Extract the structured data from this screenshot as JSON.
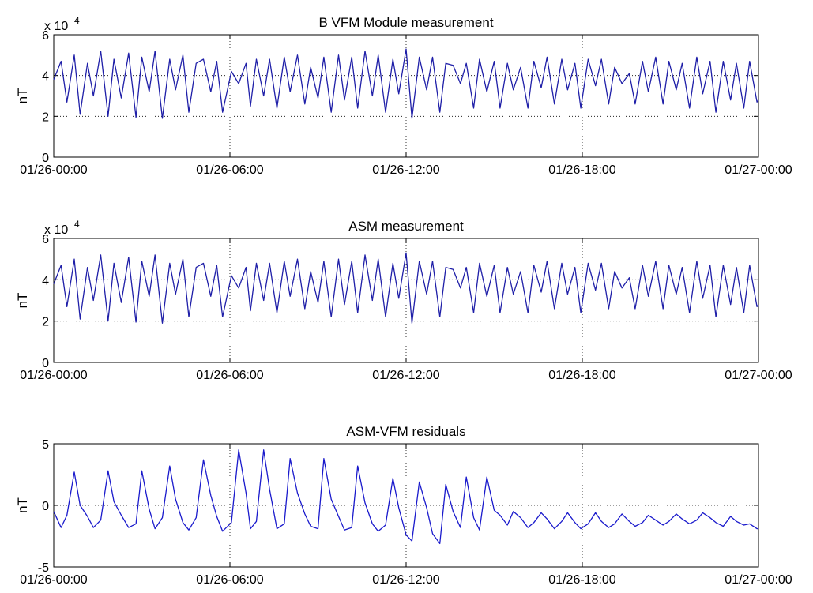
{
  "chart_data": [
    {
      "type": "line",
      "title": "B VFM Module measurement",
      "xlabel": "",
      "ylabel": "nT",
      "y_multiplier": "x 10",
      "y_multiplier_exponent": "4",
      "ylim": [
        0,
        6
      ],
      "yticks": [
        "0",
        "2",
        "4",
        "6"
      ],
      "xlim": [
        "01/26-00:00",
        "01/27-00:00"
      ],
      "xticks": [
        "01/26-00:00",
        "01/26-06:00",
        "01/26-12:00",
        "01/26-18:00",
        "01/27-00:00"
      ],
      "grid": true,
      "color": "#1f1fa8",
      "series": [
        {
          "x_hours": [
            0.0,
            0.25,
            0.45,
            0.7,
            0.9,
            1.15,
            1.35,
            1.6,
            1.85,
            2.05,
            2.3,
            2.55,
            2.8,
            3.0,
            3.25,
            3.45,
            3.7,
            3.95,
            4.15,
            4.4,
            4.6,
            4.85,
            5.1,
            5.35,
            5.55,
            5.75,
            6.05,
            6.3,
            6.55,
            6.7,
            6.9,
            7.15,
            7.35,
            7.6,
            7.85,
            8.05,
            8.3,
            8.55,
            8.75,
            9.0,
            9.2,
            9.45,
            9.7,
            9.9,
            10.15,
            10.35,
            10.6,
            10.85,
            11.05,
            11.3,
            11.55,
            11.75,
            12.0,
            12.2,
            12.45,
            12.7,
            12.9,
            13.15,
            13.35,
            13.6,
            13.85,
            14.05,
            14.3,
            14.5,
            14.75,
            15.0,
            15.2,
            15.45,
            15.65,
            15.9,
            16.15,
            16.35,
            16.6,
            16.8,
            17.05,
            17.3,
            17.5,
            17.75,
            17.95,
            18.2,
            18.45,
            18.65,
            18.9,
            19.1,
            19.35,
            19.6,
            19.8,
            20.05,
            20.25,
            20.5,
            20.75,
            20.95,
            21.2,
            21.4,
            21.65,
            21.9,
            22.1,
            22.35,
            22.55,
            22.8,
            23.05,
            23.25,
            23.5,
            23.7,
            23.95,
            24.0
          ],
          "values": [
            3.8,
            4.7,
            2.7,
            5.0,
            2.1,
            4.6,
            3.0,
            5.2,
            2.0,
            4.8,
            2.9,
            5.1,
            1.95,
            4.9,
            3.2,
            5.2,
            1.9,
            4.8,
            3.3,
            5.0,
            2.2,
            4.6,
            4.8,
            3.2,
            4.7,
            2.2,
            4.2,
            3.6,
            4.6,
            2.5,
            4.8,
            3.0,
            4.8,
            2.4,
            4.9,
            3.2,
            5.0,
            2.6,
            4.4,
            2.9,
            4.9,
            2.2,
            5.0,
            2.8,
            4.9,
            2.4,
            5.2,
            3.0,
            5.0,
            2.2,
            4.8,
            3.1,
            5.3,
            1.9,
            4.9,
            3.3,
            4.9,
            2.2,
            4.6,
            4.5,
            3.6,
            4.6,
            2.4,
            4.8,
            3.2,
            4.7,
            2.4,
            4.6,
            3.3,
            4.4,
            2.4,
            4.7,
            3.4,
            4.9,
            2.6,
            4.8,
            3.3,
            4.6,
            2.4,
            4.8,
            3.5,
            4.8,
            2.6,
            4.4,
            3.6,
            4.1,
            2.6,
            4.7,
            3.2,
            4.9,
            2.6,
            4.7,
            3.3,
            4.6,
            2.4,
            4.9,
            3.1,
            4.7,
            2.2,
            4.7,
            2.8,
            4.6,
            2.4,
            4.7,
            2.7,
            2.8
          ]
        }
      ]
    },
    {
      "type": "line",
      "title": "ASM measurement",
      "xlabel": "",
      "ylabel": "nT",
      "y_multiplier": "x 10",
      "y_multiplier_exponent": "4",
      "ylim": [
        0,
        6
      ],
      "yticks": [
        "0",
        "2",
        "4",
        "6"
      ],
      "xlim": [
        "01/26-00:00",
        "01/27-00:00"
      ],
      "xticks": [
        "01/26-00:00",
        "01/26-06:00",
        "01/26-12:00",
        "01/26-18:00",
        "01/27-00:00"
      ],
      "grid": true,
      "color": "#1f1fa8",
      "series": [
        {
          "x_hours": [
            0.0,
            0.25,
            0.45,
            0.7,
            0.9,
            1.15,
            1.35,
            1.6,
            1.85,
            2.05,
            2.3,
            2.55,
            2.8,
            3.0,
            3.25,
            3.45,
            3.7,
            3.95,
            4.15,
            4.4,
            4.6,
            4.85,
            5.1,
            5.35,
            5.55,
            5.75,
            6.05,
            6.3,
            6.55,
            6.7,
            6.9,
            7.15,
            7.35,
            7.6,
            7.85,
            8.05,
            8.3,
            8.55,
            8.75,
            9.0,
            9.2,
            9.45,
            9.7,
            9.9,
            10.15,
            10.35,
            10.6,
            10.85,
            11.05,
            11.3,
            11.55,
            11.75,
            12.0,
            12.2,
            12.45,
            12.7,
            12.9,
            13.15,
            13.35,
            13.6,
            13.85,
            14.05,
            14.3,
            14.5,
            14.75,
            15.0,
            15.2,
            15.45,
            15.65,
            15.9,
            16.15,
            16.35,
            16.6,
            16.8,
            17.05,
            17.3,
            17.5,
            17.75,
            17.95,
            18.2,
            18.45,
            18.65,
            18.9,
            19.1,
            19.35,
            19.6,
            19.8,
            20.05,
            20.25,
            20.5,
            20.75,
            20.95,
            21.2,
            21.4,
            21.65,
            21.9,
            22.1,
            22.35,
            22.55,
            22.8,
            23.05,
            23.25,
            23.5,
            23.7,
            23.95,
            24.0
          ],
          "values": [
            3.8,
            4.7,
            2.7,
            5.0,
            2.1,
            4.6,
            3.0,
            5.2,
            2.0,
            4.8,
            2.9,
            5.1,
            1.95,
            4.9,
            3.2,
            5.2,
            1.9,
            4.8,
            3.3,
            5.0,
            2.2,
            4.6,
            4.8,
            3.2,
            4.7,
            2.2,
            4.2,
            3.6,
            4.6,
            2.5,
            4.8,
            3.0,
            4.8,
            2.4,
            4.9,
            3.2,
            5.0,
            2.6,
            4.4,
            2.9,
            4.9,
            2.2,
            5.0,
            2.8,
            4.9,
            2.4,
            5.2,
            3.0,
            5.0,
            2.2,
            4.8,
            3.1,
            5.3,
            1.9,
            4.9,
            3.3,
            4.9,
            2.2,
            4.6,
            4.5,
            3.6,
            4.6,
            2.4,
            4.8,
            3.2,
            4.7,
            2.4,
            4.6,
            3.3,
            4.4,
            2.4,
            4.7,
            3.4,
            4.9,
            2.6,
            4.8,
            3.3,
            4.6,
            2.4,
            4.8,
            3.5,
            4.8,
            2.6,
            4.4,
            3.6,
            4.1,
            2.6,
            4.7,
            3.2,
            4.9,
            2.6,
            4.7,
            3.3,
            4.6,
            2.4,
            4.9,
            3.1,
            4.7,
            2.2,
            4.7,
            2.8,
            4.6,
            2.4,
            4.7,
            2.7,
            2.8
          ]
        }
      ]
    },
    {
      "type": "line",
      "title": "ASM-VFM residuals",
      "xlabel": "",
      "ylabel": "nT",
      "ylim": [
        -5,
        5
      ],
      "yticks": [
        "-5",
        "0",
        "5"
      ],
      "xlim": [
        "01/26-00:00",
        "01/27-00:00"
      ],
      "xticks": [
        "01/26-00:00",
        "01/26-06:00",
        "01/26-12:00",
        "01/26-18:00",
        "01/27-00:00"
      ],
      "grid": true,
      "color": "#1a1acc",
      "series": [
        {
          "x_hours": [
            0.0,
            0.25,
            0.45,
            0.7,
            0.9,
            1.15,
            1.35,
            1.6,
            1.85,
            2.05,
            2.3,
            2.55,
            2.8,
            3.0,
            3.25,
            3.45,
            3.7,
            3.95,
            4.15,
            4.4,
            4.6,
            4.85,
            5.1,
            5.35,
            5.55,
            5.75,
            6.05,
            6.3,
            6.55,
            6.7,
            6.9,
            7.15,
            7.35,
            7.6,
            7.85,
            8.05,
            8.3,
            8.55,
            8.75,
            9.0,
            9.2,
            9.45,
            9.7,
            9.9,
            10.15,
            10.35,
            10.6,
            10.85,
            11.05,
            11.3,
            11.55,
            11.75,
            12.0,
            12.2,
            12.45,
            12.7,
            12.9,
            13.15,
            13.35,
            13.6,
            13.85,
            14.05,
            14.3,
            14.5,
            14.75,
            15.0,
            15.2,
            15.45,
            15.65,
            15.9,
            16.15,
            16.35,
            16.6,
            16.8,
            17.05,
            17.3,
            17.5,
            17.75,
            17.95,
            18.2,
            18.45,
            18.65,
            18.9,
            19.1,
            19.35,
            19.6,
            19.8,
            20.05,
            20.25,
            20.5,
            20.75,
            20.95,
            21.2,
            21.4,
            21.65,
            21.9,
            22.1,
            22.35,
            22.55,
            22.8,
            23.05,
            23.25,
            23.5,
            23.7,
            23.95,
            24.0
          ],
          "values": [
            -0.5,
            -1.8,
            -0.8,
            2.7,
            0.0,
            -0.9,
            -1.8,
            -1.2,
            2.8,
            0.3,
            -0.8,
            -1.8,
            -1.5,
            2.8,
            -0.3,
            -1.9,
            -1.0,
            3.2,
            0.5,
            -1.4,
            -2.0,
            -1.0,
            3.7,
            0.8,
            -0.9,
            -2.1,
            -1.4,
            4.5,
            1.0,
            -1.9,
            -1.3,
            4.5,
            1.3,
            -1.9,
            -1.5,
            3.8,
            1.0,
            -0.7,
            -1.7,
            -1.9,
            3.8,
            0.5,
            -0.9,
            -2.0,
            -1.8,
            3.2,
            0.2,
            -1.5,
            -2.1,
            -1.6,
            2.2,
            -0.2,
            -2.4,
            -2.9,
            1.9,
            -0.2,
            -2.3,
            -3.1,
            1.7,
            -0.5,
            -1.8,
            2.3,
            -1.0,
            -2.0,
            2.3,
            -0.4,
            -0.8,
            -1.6,
            -0.5,
            -1.0,
            -1.8,
            -1.4,
            -0.6,
            -1.1,
            -1.9,
            -1.3,
            -0.6,
            -1.4,
            -1.9,
            -1.5,
            -0.6,
            -1.3,
            -1.8,
            -1.5,
            -0.7,
            -1.3,
            -1.7,
            -1.4,
            -0.8,
            -1.2,
            -1.6,
            -1.3,
            -0.7,
            -1.1,
            -1.5,
            -1.2,
            -0.6,
            -1.0,
            -1.4,
            -1.7,
            -0.9,
            -1.3,
            -1.6,
            -1.5,
            -1.9,
            -1.9
          ]
        }
      ]
    }
  ]
}
